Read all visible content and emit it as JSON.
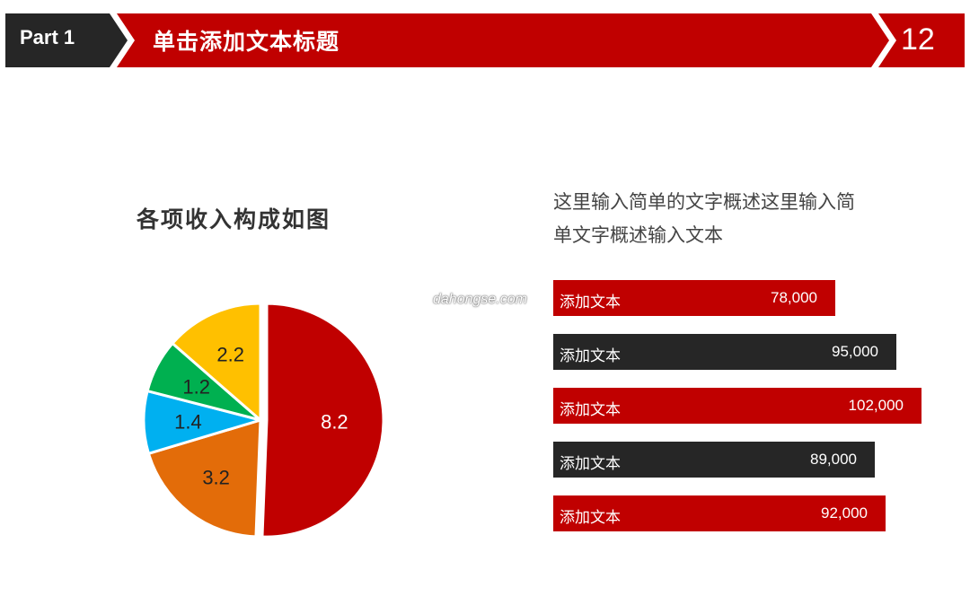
{
  "header": {
    "part_label": "Part 1",
    "title": "单击添加文本标题",
    "page_number": "12",
    "colors": {
      "red": "#c00000",
      "dark": "#262626"
    }
  },
  "watermark": "dahongse.com",
  "description": {
    "line1": "这里输入简单的文字概述这里输入简",
    "line2": "单文字概述输入文本"
  },
  "chart_data": [
    {
      "type": "pie",
      "title": "各项收入构成如图",
      "slices": [
        {
          "label": "8.2",
          "value": 8.2,
          "color": "#c00000",
          "label_color": "#ffffff"
        },
        {
          "label": "3.2",
          "value": 3.2,
          "color": "#e36c09",
          "label_color": "#222222"
        },
        {
          "label": "1.4",
          "value": 1.4,
          "color": "#00b0f0",
          "label_color": "#222222"
        },
        {
          "label": "1.2",
          "value": 1.2,
          "color": "#00b050",
          "label_color": "#222222"
        },
        {
          "label": "2.2",
          "value": 2.2,
          "color": "#ffc000",
          "label_color": "#222222"
        }
      ]
    },
    {
      "type": "bar",
      "orientation": "horizontal",
      "categories": [
        "添加文本",
        "添加文本",
        "添加文本",
        "添加文本",
        "添加文本"
      ],
      "values": [
        78000,
        95000,
        102000,
        89000,
        92000
      ],
      "value_labels": [
        "78,000",
        "95,000",
        "102,000",
        "89,000",
        "92,000"
      ],
      "colors": [
        "#c00000",
        "#262626",
        "#c00000",
        "#262626",
        "#c00000"
      ]
    }
  ]
}
